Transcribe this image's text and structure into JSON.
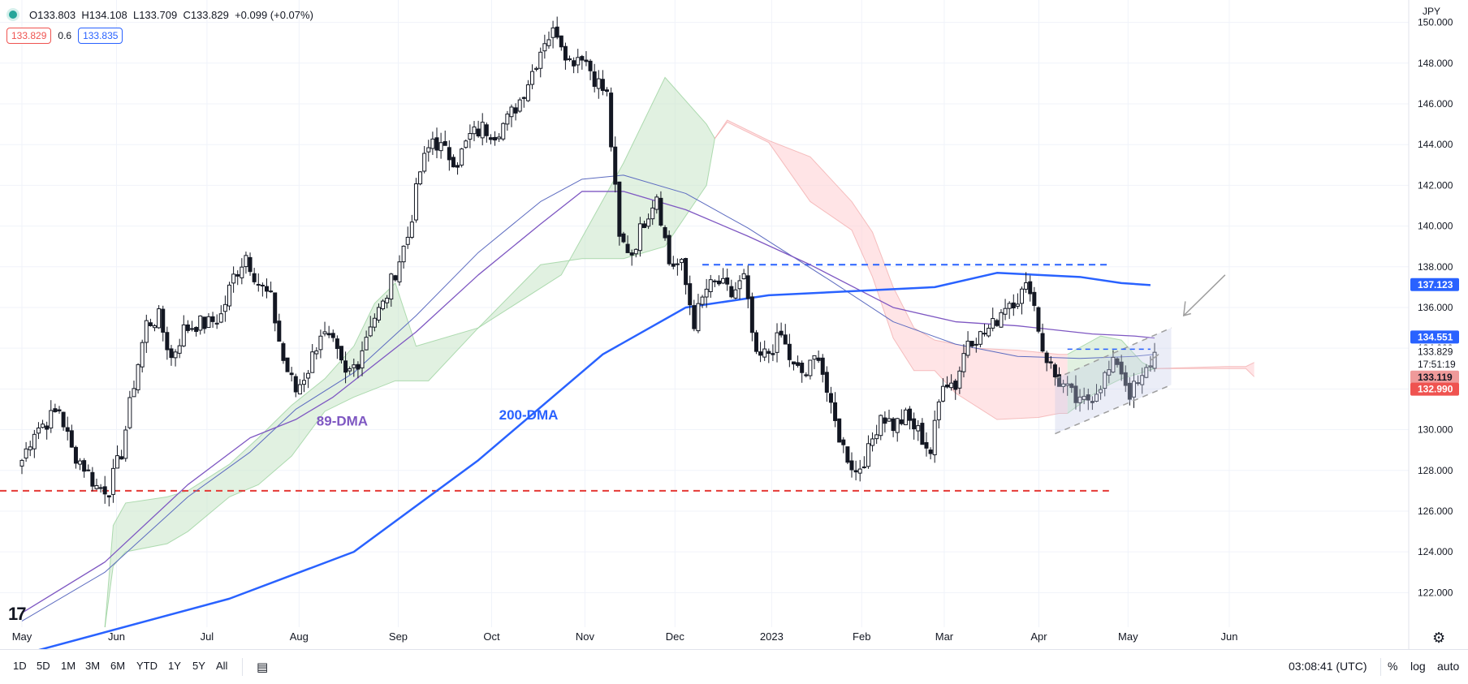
{
  "header": {
    "open": "O133.803",
    "high": "H134.108",
    "low": "L133.709",
    "close": "C133.829",
    "change": "+0.099 (+0.07%)",
    "bid": "133.829",
    "spread": "0.6",
    "ask": "133.835"
  },
  "bottom_bar": {
    "ranges": [
      "1D",
      "5D",
      "1M",
      "3M",
      "6M",
      "YTD",
      "1Y",
      "5Y",
      "All"
    ],
    "clock": "03:08:41 (UTC)",
    "percent": "%",
    "log": "log",
    "auto": "auto"
  },
  "colors": {
    "up": "#131722",
    "down": "#131722",
    "dma200": "#2962ff",
    "dma89": "#7e57c2",
    "cloud_bull": "#c8e6c9",
    "cloud_bear": "#ffcdd2",
    "support": "#e53935",
    "resistance": "#2962ff"
  },
  "chart_data": {
    "type": "candlestick",
    "currency": "JPY",
    "ylim": [
      120.3,
      151.1
    ],
    "yticks": [
      122,
      124,
      126,
      128,
      130,
      132,
      134,
      136,
      138,
      140,
      142,
      144,
      146,
      148,
      150
    ],
    "ytick_labels": [
      "122.000",
      "124.000",
      "126.000",
      "128.000",
      "130.000",
      "132.000",
      "134.000",
      "136.000",
      "138.000",
      "140.000",
      "142.000",
      "144.000",
      "146.000",
      "148.000",
      "150.000"
    ],
    "xlabels": [
      {
        "label": "May",
        "t": 0
      },
      {
        "label": "Jun",
        "t": 22.8
      },
      {
        "label": "Jul",
        "t": 44.6
      },
      {
        "label": "Aug",
        "t": 66.8
      },
      {
        "label": "Sep",
        "t": 90.7
      },
      {
        "label": "Oct",
        "t": 113.2
      },
      {
        "label": "Nov",
        "t": 135.7
      },
      {
        "label": "Dec",
        "t": 157.4
      },
      {
        "label": "2023",
        "t": 180.7
      },
      {
        "label": "Feb",
        "t": 202.4
      },
      {
        "label": "Mar",
        "t": 222.3
      },
      {
        "label": "Apr",
        "t": 245.1
      },
      {
        "label": "May",
        "t": 266.6
      },
      {
        "label": "Jun",
        "t": 291.0
      }
    ],
    "price_labels": [
      {
        "value": "137.123",
        "price": 137.123,
        "bg": "#2962ff",
        "fg": "#ffffff"
      },
      {
        "value": "134.551",
        "price": 134.551,
        "bg": "#2962ff",
        "fg": "#ffffff"
      },
      {
        "value": "133.829",
        "price": 133.829,
        "bg": "#ffffff",
        "fg": "#131722"
      },
      {
        "value": "17:51:19",
        "price": 133.2,
        "bg": "#ffffff",
        "fg": "#131722"
      },
      {
        "value": "133.119",
        "price": 132.58,
        "bg": "#ef9a9a",
        "fg": "#131722"
      },
      {
        "value": "132.990",
        "price": 131.99,
        "bg": "#ef5350",
        "fg": "#ffffff"
      }
    ],
    "annotations": [
      {
        "text": "89-DMA",
        "t": 71,
        "price": 130.2,
        "color": "#7e57c2"
      },
      {
        "text": "200-DMA",
        "t": 115,
        "price": 130.5,
        "color": "#2962ff"
      }
    ],
    "support_level": 127.0,
    "resistance_level": 138.1,
    "candles_anchor": [
      [
        0,
        128.5
      ],
      [
        3,
        130.0
      ],
      [
        6,
        130.4
      ],
      [
        9,
        131.0
      ],
      [
        12,
        129.0
      ],
      [
        15,
        128.2
      ],
      [
        18,
        127.2
      ],
      [
        21,
        127.1
      ],
      [
        24,
        128.9
      ],
      [
        27,
        132.3
      ],
      [
        30,
        135.2
      ],
      [
        33,
        135.5
      ],
      [
        36,
        133.5
      ],
      [
        39,
        134.9
      ],
      [
        42,
        135.2
      ],
      [
        45,
        135.2
      ],
      [
        48,
        135.6
      ],
      [
        51,
        137.5
      ],
      [
        54,
        138.6
      ],
      [
        57,
        137.2
      ],
      [
        60,
        136.4
      ],
      [
        63,
        133.4
      ],
      [
        66,
        131.9
      ],
      [
        69,
        133.0
      ],
      [
        72,
        134.8
      ],
      [
        75,
        134.1
      ],
      [
        78,
        132.6
      ],
      [
        81,
        133.4
      ],
      [
        84,
        135.3
      ],
      [
        87,
        136.1
      ],
      [
        90,
        137.8
      ],
      [
        93,
        139.5
      ],
      [
        96,
        142.7
      ],
      [
        99,
        144.3
      ],
      [
        102,
        143.6
      ],
      [
        105,
        143.2
      ],
      [
        108,
        144.4
      ],
      [
        111,
        144.8
      ],
      [
        114,
        144.6
      ],
      [
        117,
        145.2
      ],
      [
        120,
        146.2
      ],
      [
        123,
        147.6
      ],
      [
        126,
        149.2
      ],
      [
        129,
        149.6
      ],
      [
        132,
        148.1
      ],
      [
        135,
        148.5
      ],
      [
        138,
        147.3
      ],
      [
        141,
        146.4
      ],
      [
        144,
        139.3
      ],
      [
        147,
        138.7
      ],
      [
        150,
        140.3
      ],
      [
        153,
        141.6
      ],
      [
        156,
        138.2
      ],
      [
        159,
        138.0
      ],
      [
        162,
        135.3
      ],
      [
        165,
        136.9
      ],
      [
        168,
        137.2
      ],
      [
        171,
        136.6
      ],
      [
        174,
        137.4
      ],
      [
        177,
        133.4
      ],
      [
        180,
        133.8
      ],
      [
        183,
        134.6
      ],
      [
        186,
        133.0
      ],
      [
        189,
        132.7
      ],
      [
        192,
        133.8
      ],
      [
        195,
        130.9
      ],
      [
        198,
        129.1
      ],
      [
        201,
        127.9
      ],
      [
        204,
        128.9
      ],
      [
        207,
        130.8
      ],
      [
        210,
        130.2
      ],
      [
        213,
        130.6
      ],
      [
        216,
        129.9
      ],
      [
        219,
        128.9
      ],
      [
        222,
        132.5
      ],
      [
        225,
        132.2
      ],
      [
        228,
        134.5
      ],
      [
        231,
        134.6
      ],
      [
        234,
        135.1
      ],
      [
        237,
        136.2
      ],
      [
        240,
        136.5
      ],
      [
        243,
        137.1
      ],
      [
        246,
        134.0
      ],
      [
        249,
        132.6
      ],
      [
        252,
        131.9
      ],
      [
        255,
        131.2
      ],
      [
        258,
        131.7
      ],
      [
        261,
        132.6
      ],
      [
        264,
        133.4
      ],
      [
        267,
        131.8
      ],
      [
        270,
        132.4
      ],
      [
        273,
        133.8
      ]
    ],
    "dma200": [
      [
        -1,
        118.9
      ],
      [
        50,
        121.7
      ],
      [
        80,
        124.0
      ],
      [
        110,
        128.5
      ],
      [
        140,
        133.7
      ],
      [
        160,
        136.0
      ],
      [
        180,
        136.6
      ],
      [
        200,
        136.8
      ],
      [
        220,
        137.0
      ],
      [
        235,
        137.7
      ],
      [
        255,
        137.5
      ],
      [
        265,
        137.2
      ],
      [
        272,
        137.1
      ]
    ],
    "dma89": [
      [
        0,
        121.0
      ],
      [
        20,
        123.5
      ],
      [
        40,
        127.3
      ],
      [
        55,
        129.6
      ],
      [
        66,
        130.5
      ],
      [
        75,
        131.6
      ],
      [
        95,
        134.8
      ],
      [
        110,
        137.6
      ],
      [
        125,
        140.1
      ],
      [
        135,
        141.7
      ],
      [
        145,
        141.7
      ],
      [
        160,
        140.8
      ],
      [
        175,
        139.5
      ],
      [
        190,
        138.1
      ],
      [
        210,
        136.0
      ],
      [
        225,
        135.3
      ],
      [
        240,
        135.1
      ],
      [
        258,
        134.7
      ],
      [
        268,
        134.6
      ],
      [
        273,
        134.5
      ]
    ],
    "dma_mid": [
      [
        0,
        120.6
      ],
      [
        20,
        123.0
      ],
      [
        40,
        126.7
      ],
      [
        55,
        128.9
      ],
      [
        66,
        131.0
      ],
      [
        80,
        132.8
      ],
      [
        95,
        135.6
      ],
      [
        110,
        138.7
      ],
      [
        125,
        141.2
      ],
      [
        135,
        142.3
      ],
      [
        145,
        142.5
      ],
      [
        160,
        141.6
      ],
      [
        175,
        139.9
      ],
      [
        195,
        137.3
      ],
      [
        210,
        135.3
      ],
      [
        225,
        134.2
      ],
      [
        240,
        133.6
      ],
      [
        255,
        133.5
      ],
      [
        268,
        133.6
      ],
      [
        273,
        133.7
      ]
    ],
    "cloud_green": {
      "spanA": [
        [
          20,
          120.3
        ],
        [
          22,
          125.3
        ],
        [
          25,
          126.4
        ],
        [
          35,
          126.7
        ],
        [
          40,
          127.0
        ],
        [
          50,
          128.3
        ],
        [
          57,
          129.6
        ],
        [
          65,
          131.2
        ],
        [
          73,
          132.5
        ],
        [
          80,
          134.1
        ],
        [
          85,
          136.2
        ],
        [
          90,
          137.2
        ],
        [
          95,
          134.1
        ],
        [
          110,
          135.0
        ],
        [
          130,
          137.6
        ],
        [
          145,
          143.1
        ],
        [
          155,
          147.3
        ],
        [
          165,
          145.0
        ],
        [
          167,
          144.3
        ]
      ],
      "spanB": [
        [
          20,
          120.3
        ],
        [
          22,
          123.3
        ],
        [
          25,
          124.0
        ],
        [
          35,
          124.4
        ],
        [
          40,
          125.0
        ],
        [
          50,
          126.7
        ],
        [
          57,
          127.3
        ],
        [
          65,
          128.7
        ],
        [
          73,
          130.9
        ],
        [
          80,
          131.6
        ],
        [
          90,
          132.4
        ],
        [
          98,
          132.4
        ],
        [
          110,
          135.0
        ],
        [
          125,
          138.1
        ],
        [
          135,
          138.4
        ],
        [
          145,
          138.4
        ],
        [
          155,
          139.0
        ],
        [
          165,
          142.0
        ],
        [
          167,
          144.3
        ]
      ]
    },
    "cloud_red": {
      "spanA": [
        [
          167,
          144.3
        ],
        [
          170,
          145.1
        ],
        [
          180,
          144.1
        ],
        [
          190,
          141.2
        ],
        [
          200,
          139.8
        ],
        [
          205,
          137.5
        ],
        [
          210,
          134.5
        ],
        [
          215,
          132.9
        ],
        [
          220,
          132.9
        ],
        [
          225,
          131.8
        ],
        [
          235,
          130.5
        ],
        [
          245,
          130.6
        ],
        [
          250,
          130.8
        ],
        [
          252,
          130.8
        ]
      ],
      "spanB": [
        [
          167,
          144.3
        ],
        [
          170,
          145.2
        ],
        [
          180,
          144.2
        ],
        [
          190,
          143.4
        ],
        [
          200,
          141.2
        ],
        [
          205,
          139.7
        ],
        [
          210,
          137.0
        ],
        [
          215,
          135.0
        ],
        [
          220,
          134.4
        ],
        [
          230,
          134.0
        ],
        [
          240,
          133.9
        ],
        [
          250,
          133.7
        ],
        [
          252,
          133.7
        ]
      ]
    },
    "cloud_green2": {
      "spanA": [
        [
          252,
          133.7
        ],
        [
          260,
          134.6
        ],
        [
          265,
          134.4
        ],
        [
          270,
          133.3
        ],
        [
          273,
          133.0
        ]
      ],
      "spanB": [
        [
          252,
          130.8
        ],
        [
          260,
          132.0
        ],
        [
          265,
          132.5
        ],
        [
          270,
          132.8
        ],
        [
          273,
          133.0
        ]
      ]
    },
    "cloud_red2": {
      "spanA": [
        [
          273,
          133.0
        ],
        [
          290,
          133.0
        ],
        [
          295,
          133.0
        ],
        [
          297,
          132.6
        ]
      ],
      "spanB": [
        [
          273,
          133.0
        ],
        [
          290,
          133.1
        ],
        [
          295,
          133.1
        ],
        [
          297,
          133.3
        ]
      ]
    },
    "channel_upper": [
      [
        249,
        132.5
      ],
      [
        277,
        135.0
      ]
    ],
    "channel_lower": [
      [
        249,
        129.8
      ],
      [
        277,
        132.2
      ]
    ]
  }
}
